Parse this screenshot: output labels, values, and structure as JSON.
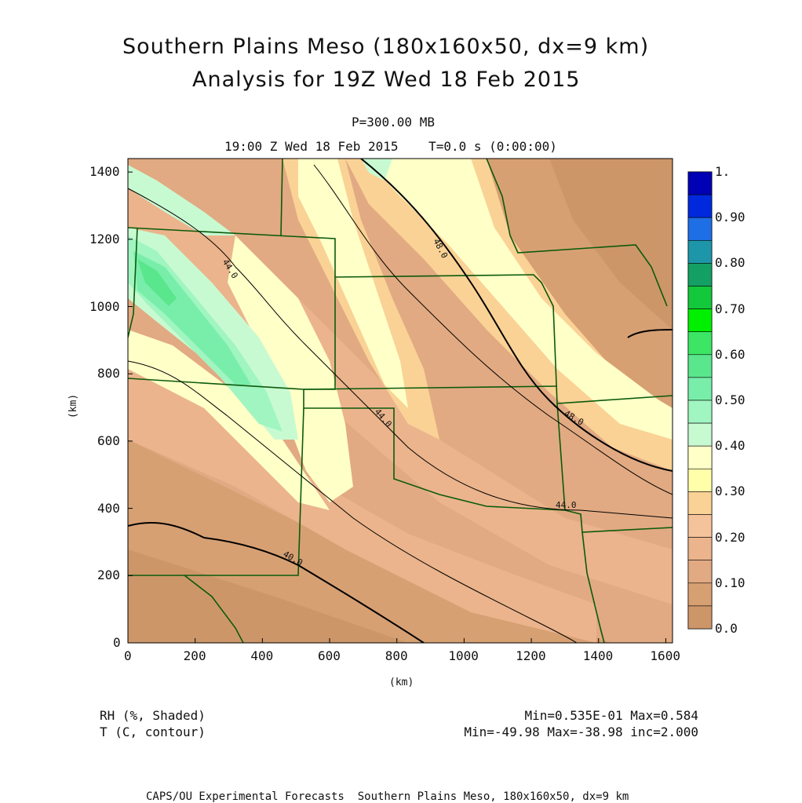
{
  "header": {
    "title_line1": "Southern Plains Meso (180x160x50, dx=9 km)",
    "title_line2": "Analysis for 19Z Wed 18 Feb 2015",
    "pressure": "P=300.00 MB",
    "valid_time": "19:00 Z Wed 18 Feb 2015    T=0.0 s (0:00:00)"
  },
  "chart_data": {
    "type": "heatmap",
    "xlabel": "(km)",
    "ylabel": "(km)",
    "xlim": [
      0,
      1620
    ],
    "ylim": [
      0,
      1440
    ],
    "x_ticks": [
      "0",
      "200",
      "400",
      "600",
      "800",
      "1000",
      "1200",
      "1400",
      "1600"
    ],
    "y_ticks": [
      "0",
      "200",
      "400",
      "600",
      "800",
      "1000",
      "1200",
      "1400"
    ],
    "colorbar": {
      "labels": [
        "1.",
        "0.90",
        "0.80",
        "0.70",
        "0.60",
        "0.50",
        "0.40",
        "0.30",
        "0.20",
        "0.10",
        "0.0"
      ],
      "colors_top_to_bottom": [
        "#0000b4",
        "#0028dc",
        "#1e6ee6",
        "#1e96aa",
        "#14a064",
        "#14c83c",
        "#00f000",
        "#3ce664",
        "#5ae68c",
        "#78eeaa",
        "#a0f5c0",
        "#c8fad2",
        "#ffffc8",
        "#ffffaa",
        "#fad296",
        "#f5c39b",
        "#ebb48c",
        "#e1aa82",
        "#d7a073",
        "#cd9669"
      ]
    },
    "contours": [
      {
        "label": "48.0",
        "value": -48.0
      },
      {
        "label": "44.0",
        "value": -44.0
      },
      {
        "label": "40.0",
        "value": -40.0
      }
    ],
    "fields": [
      {
        "name": "RH (%, Shaded)",
        "stats": "Min=0.535E-01 Max=0.584"
      },
      {
        "name": "T (C, contour)",
        "stats": "Min=-49.98 Max=-38.98 inc=2.000"
      }
    ]
  },
  "footer": "CAPS/OU Experimental Forecasts  Southern Plains Meso, 180x160x50, dx=9 km"
}
